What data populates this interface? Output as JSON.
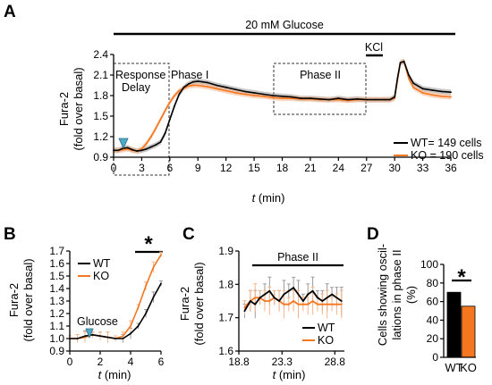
{
  "colors": {
    "wt": "#000000",
    "ko": "#F4771F",
    "ko_band": "#F7B58A",
    "wt_band": "#9B9B9B",
    "arrow": "#4FA8C6"
  },
  "panels": {
    "a": {
      "letter": "A",
      "glucose_label": "20 mM Glucose",
      "kcl_label": "KCl",
      "box1_label_line1": "Response",
      "box1_label_line2": "Delay",
      "phase1_label": "Phase I",
      "phase2_label": "Phase II",
      "ylabel_line1": "Fura-2",
      "ylabel_line2": "(fold over basal)",
      "xlabel_t": "t",
      "xlabel_unit": "(min)",
      "legend_wt": "WT= 149 cells",
      "legend_ko": "KO = 190 cells"
    },
    "b": {
      "letter": "B",
      "ylabel_line1": "Fura-2",
      "ylabel_line2": "(fold over basal)",
      "xlabel_t": "t",
      "xlabel_unit": "(min)",
      "legend_wt": "WT",
      "legend_ko": "KO",
      "glucose_label": "Glucose",
      "star": "*"
    },
    "c": {
      "letter": "C",
      "phase_label": "Phase II",
      "ylabel_line1": "Fura-2",
      "ylabel_line2": "(fold over basal)",
      "xlabel_t": "t",
      "xlabel_unit": "(min)",
      "legend_wt": "WT",
      "legend_ko": "KO"
    },
    "d": {
      "letter": "D",
      "ylabel_line1": "Cells showing oscil-",
      "ylabel_line2": "lations in phase II",
      "ylabel_line3": "(%)",
      "star": "*"
    }
  },
  "chart_data": [
    {
      "panel": "A",
      "type": "line",
      "xlim": [
        0,
        36
      ],
      "ylim": [
        0.9,
        2.4
      ],
      "xticks": [
        "0",
        "3",
        "6",
        "9",
        "12",
        "15",
        "18",
        "21",
        "24",
        "27",
        "30",
        "33",
        "36"
      ],
      "yticks": [
        "0.9",
        "1.2",
        "1.5",
        "1.8",
        "2.1",
        "2.4"
      ],
      "x": [
        0,
        0.5,
        1,
        1.5,
        2,
        2.5,
        3,
        3.5,
        4,
        4.5,
        5,
        5.5,
        6,
        6.5,
        7,
        7.5,
        8,
        8.5,
        9,
        9.5,
        10,
        11,
        12,
        13,
        14,
        15,
        16,
        17,
        18,
        19,
        20,
        21,
        22,
        23,
        24,
        25,
        26,
        27,
        28,
        29,
        29.5,
        30,
        30.3,
        30.6,
        31,
        31.5,
        32,
        33,
        34,
        35,
        36
      ],
      "series": [
        {
          "name": "WT",
          "values": [
            1.0,
            1.0,
            1.03,
            1.04,
            1.01,
            0.99,
            1.0,
            1.02,
            1.05,
            1.08,
            1.12,
            1.25,
            1.45,
            1.65,
            1.82,
            1.92,
            1.97,
            2.0,
            2.01,
            2.0,
            1.99,
            1.95,
            1.92,
            1.89,
            1.86,
            1.84,
            1.82,
            1.8,
            1.79,
            1.78,
            1.76,
            1.76,
            1.75,
            1.74,
            1.76,
            1.74,
            1.75,
            1.74,
            1.74,
            1.74,
            1.74,
            1.78,
            2.05,
            2.28,
            2.3,
            2.1,
            1.98,
            1.9,
            1.88,
            1.86,
            1.85
          ]
        },
        {
          "name": "KO",
          "values": [
            1.0,
            1.0,
            1.01,
            1.02,
            1.0,
            0.99,
            1.02,
            1.1,
            1.2,
            1.32,
            1.45,
            1.58,
            1.7,
            1.8,
            1.87,
            1.91,
            1.94,
            1.95,
            1.95,
            1.94,
            1.93,
            1.9,
            1.87,
            1.84,
            1.82,
            1.8,
            1.79,
            1.77,
            1.76,
            1.76,
            1.75,
            1.75,
            1.74,
            1.74,
            1.74,
            1.73,
            1.74,
            1.74,
            1.74,
            1.74,
            1.74,
            1.76,
            2.02,
            2.28,
            2.3,
            2.05,
            1.92,
            1.84,
            1.81,
            1.79,
            1.78
          ]
        }
      ]
    },
    {
      "panel": "B",
      "type": "line",
      "xlim": [
        0,
        6
      ],
      "ylim": [
        0.9,
        1.7
      ],
      "xticks": [
        "0",
        "2",
        "4",
        "6"
      ],
      "yticks": [
        "0.9",
        "1.0",
        "1.1",
        "1.2",
        "1.3",
        "1.4",
        "1.5",
        "1.6",
        "1.7"
      ],
      "x": [
        0,
        0.5,
        1,
        1.5,
        2,
        2.5,
        3,
        3.5,
        4,
        4.5,
        5,
        5.5,
        6
      ],
      "series": [
        {
          "name": "WT",
          "values": [
            1.0,
            1.0,
            1.02,
            1.03,
            1.02,
            1.01,
            1.0,
            1.0,
            1.04,
            1.1,
            1.2,
            1.33,
            1.44
          ]
        },
        {
          "name": "KO",
          "values": [
            1.0,
            1.0,
            1.01,
            1.03,
            1.02,
            1.01,
            1.0,
            1.02,
            1.1,
            1.25,
            1.42,
            1.57,
            1.67
          ]
        }
      ]
    },
    {
      "panel": "C",
      "type": "line",
      "xlim": [
        18.8,
        29.8
      ],
      "ylim": [
        1.6,
        1.9
      ],
      "xticks": [
        "18.8",
        "23.3",
        "28.8"
      ],
      "yticks": [
        "1.6",
        "1.7",
        "1.8",
        "1.9"
      ],
      "x": [
        19.4,
        20,
        20.5,
        21,
        21.5,
        22,
        22.5,
        23,
        23.5,
        24,
        24.5,
        25,
        25.5,
        26,
        26.5,
        27,
        27.5,
        28,
        28.5,
        29,
        29.5
      ],
      "series": [
        {
          "name": "WT",
          "values": [
            1.72,
            1.75,
            1.74,
            1.76,
            1.77,
            1.78,
            1.76,
            1.75,
            1.77,
            1.78,
            1.79,
            1.77,
            1.75,
            1.77,
            1.78,
            1.76,
            1.75,
            1.76,
            1.77,
            1.76,
            1.75
          ]
        },
        {
          "name": "KO",
          "values": [
            1.73,
            1.75,
            1.76,
            1.76,
            1.75,
            1.75,
            1.76,
            1.75,
            1.74,
            1.74,
            1.75,
            1.74,
            1.74,
            1.74,
            1.75,
            1.74,
            1.74,
            1.74,
            1.74,
            1.74,
            1.74
          ]
        }
      ]
    },
    {
      "panel": "D",
      "type": "bar",
      "categories": [
        "WT",
        "KO"
      ],
      "values": [
        70,
        55
      ],
      "ylim": [
        0,
        100
      ],
      "yticks": [
        "0",
        "20",
        "40",
        "60",
        "80",
        "100"
      ]
    }
  ]
}
